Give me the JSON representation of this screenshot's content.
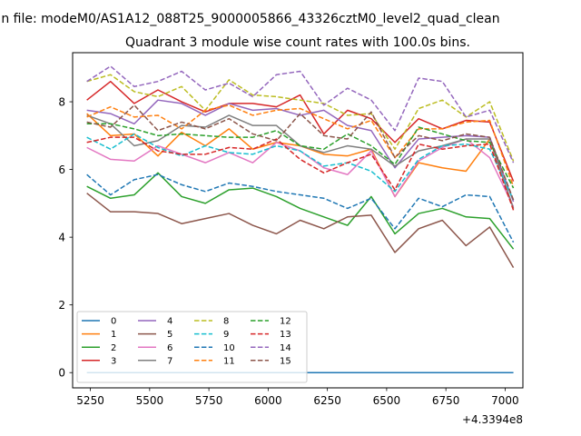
{
  "figure": {
    "suptitle": "...n file: modeM0/AS1A12_088T25_9000005866_43326cztM0_level2_quad_clean"
  },
  "chart_data": {
    "type": "line",
    "title": "Quadrant 3 module wise count rates with 100.0s bins.",
    "xlabel": "",
    "ylabel": "",
    "x_offset_label": "+4.3394e8",
    "xlim": [
      5175,
      7075
    ],
    "ylim": [
      -0.45,
      9.45
    ],
    "xticks": [
      5250,
      5500,
      5750,
      6000,
      6250,
      6500,
      6750,
      7000
    ],
    "yticks": [
      0,
      2,
      4,
      6,
      8
    ],
    "grid": false,
    "legend_position": "lower-left",
    "legend_columns": 4,
    "x": [
      5235,
      5335,
      5435,
      5535,
      5635,
      5735,
      5835,
      5935,
      6035,
      6135,
      6235,
      6335,
      6435,
      6535,
      6635,
      6735,
      6835,
      6935,
      7035
    ],
    "series": [
      {
        "name": "0",
        "color": "#1f77b4",
        "dash": "solid",
        "values": [
          0,
          0,
          0,
          0,
          0,
          0,
          0,
          0,
          0,
          0,
          0,
          0,
          0,
          0,
          0,
          0,
          0,
          0,
          0
        ]
      },
      {
        "name": "1",
        "color": "#ff7f0e",
        "dash": "solid",
        "values": [
          7.65,
          7.0,
          7.05,
          6.4,
          7.1,
          6.7,
          7.2,
          6.6,
          6.8,
          6.7,
          6.45,
          6.4,
          6.6,
          5.2,
          6.2,
          6.05,
          5.95,
          6.9,
          4.85
        ]
      },
      {
        "name": "2",
        "color": "#2ca02c",
        "dash": "solid",
        "values": [
          5.5,
          5.15,
          5.25,
          5.9,
          5.2,
          5.0,
          5.4,
          5.45,
          5.2,
          4.85,
          4.6,
          4.35,
          5.2,
          4.1,
          4.7,
          4.85,
          4.6,
          4.55,
          3.65
        ]
      },
      {
        "name": "3",
        "color": "#d62728",
        "dash": "solid",
        "values": [
          8.05,
          8.6,
          7.95,
          8.35,
          8.0,
          7.7,
          7.95,
          7.95,
          7.85,
          8.2,
          7.05,
          7.75,
          7.5,
          6.8,
          7.5,
          7.2,
          7.45,
          7.4,
          5.65
        ]
      },
      {
        "name": "4",
        "color": "#9467bd",
        "dash": "solid",
        "values": [
          7.75,
          7.65,
          7.35,
          8.05,
          7.95,
          7.6,
          7.95,
          7.75,
          7.8,
          7.6,
          7.75,
          7.3,
          7.15,
          6.05,
          6.9,
          6.95,
          7.0,
          6.95,
          5.05
        ]
      },
      {
        "name": "5",
        "color": "#8c564b",
        "dash": "solid",
        "values": [
          5.3,
          4.75,
          4.75,
          4.7,
          4.4,
          4.55,
          4.7,
          4.35,
          4.1,
          4.5,
          4.25,
          4.6,
          4.65,
          3.55,
          4.25,
          4.5,
          3.75,
          4.3,
          3.1
        ]
      },
      {
        "name": "6",
        "color": "#e377c2",
        "dash": "solid",
        "values": [
          6.65,
          6.3,
          6.25,
          6.7,
          6.45,
          6.2,
          6.5,
          6.2,
          6.8,
          6.55,
          6.05,
          5.85,
          6.55,
          5.2,
          6.25,
          6.65,
          6.9,
          6.35,
          4.9
        ]
      },
      {
        "name": "7",
        "color": "#7f7f7f",
        "dash": "solid",
        "values": [
          7.6,
          7.35,
          6.7,
          6.85,
          7.3,
          7.25,
          7.6,
          7.3,
          7.3,
          6.7,
          6.5,
          6.7,
          6.6,
          6.1,
          6.55,
          6.7,
          6.9,
          6.9,
          4.85
        ]
      },
      {
        "name": "8",
        "color": "#bcbd22",
        "dash": "dashed",
        "values": [
          8.6,
          8.8,
          8.3,
          8.15,
          8.45,
          7.75,
          8.65,
          8.2,
          8.15,
          8.05,
          7.95,
          7.6,
          7.65,
          6.6,
          7.8,
          8.05,
          7.55,
          8.0,
          6.25
        ]
      },
      {
        "name": "9",
        "color": "#17becf",
        "dash": "dashed",
        "values": [
          6.95,
          6.6,
          7.05,
          6.65,
          6.4,
          6.7,
          6.5,
          6.45,
          6.7,
          6.55,
          6.1,
          6.2,
          5.95,
          5.35,
          6.3,
          6.7,
          6.75,
          6.6,
          5.1
        ]
      },
      {
        "name": "10",
        "color": "#1f77b4",
        "dash": "dashed",
        "values": [
          5.85,
          5.25,
          5.7,
          5.85,
          5.55,
          5.35,
          5.6,
          5.5,
          5.35,
          5.25,
          5.15,
          4.85,
          5.15,
          4.25,
          5.15,
          4.9,
          5.25,
          5.2,
          3.85
        ]
      },
      {
        "name": "11",
        "color": "#ff7f0e",
        "dash": "dashed",
        "values": [
          7.55,
          7.85,
          7.55,
          7.6,
          7.2,
          7.75,
          7.9,
          7.6,
          7.75,
          7.8,
          7.5,
          7.2,
          7.45,
          6.35,
          7.2,
          7.2,
          7.4,
          7.45,
          5.5
        ]
      },
      {
        "name": "12",
        "color": "#2ca02c",
        "dash": "dashed",
        "values": [
          7.35,
          7.35,
          7.2,
          7.0,
          7.05,
          7.0,
          6.95,
          6.95,
          7.15,
          6.7,
          6.6,
          7.05,
          6.7,
          6.15,
          7.25,
          7.05,
          6.85,
          6.8,
          5.45
        ]
      },
      {
        "name": "13",
        "color": "#d62728",
        "dash": "dashed",
        "values": [
          6.8,
          6.95,
          6.95,
          6.55,
          6.45,
          6.45,
          6.65,
          6.6,
          6.9,
          6.3,
          5.9,
          6.2,
          6.45,
          5.4,
          6.75,
          6.6,
          6.7,
          6.75,
          4.8
        ]
      },
      {
        "name": "14",
        "color": "#9467bd",
        "dash": "dashed",
        "values": [
          8.6,
          9.05,
          8.45,
          8.6,
          8.9,
          8.35,
          8.55,
          8.15,
          8.8,
          8.9,
          7.9,
          8.4,
          8.05,
          7.15,
          8.7,
          8.6,
          7.55,
          7.75,
          6.2
        ]
      },
      {
        "name": "15",
        "color": "#8c564b",
        "dash": "dashed",
        "values": [
          7.4,
          7.25,
          7.9,
          7.15,
          7.4,
          7.2,
          7.5,
          7.05,
          6.85,
          7.65,
          7.0,
          6.9,
          7.7,
          6.35,
          7.0,
          6.85,
          7.05,
          6.95,
          5.1
        ]
      }
    ]
  }
}
